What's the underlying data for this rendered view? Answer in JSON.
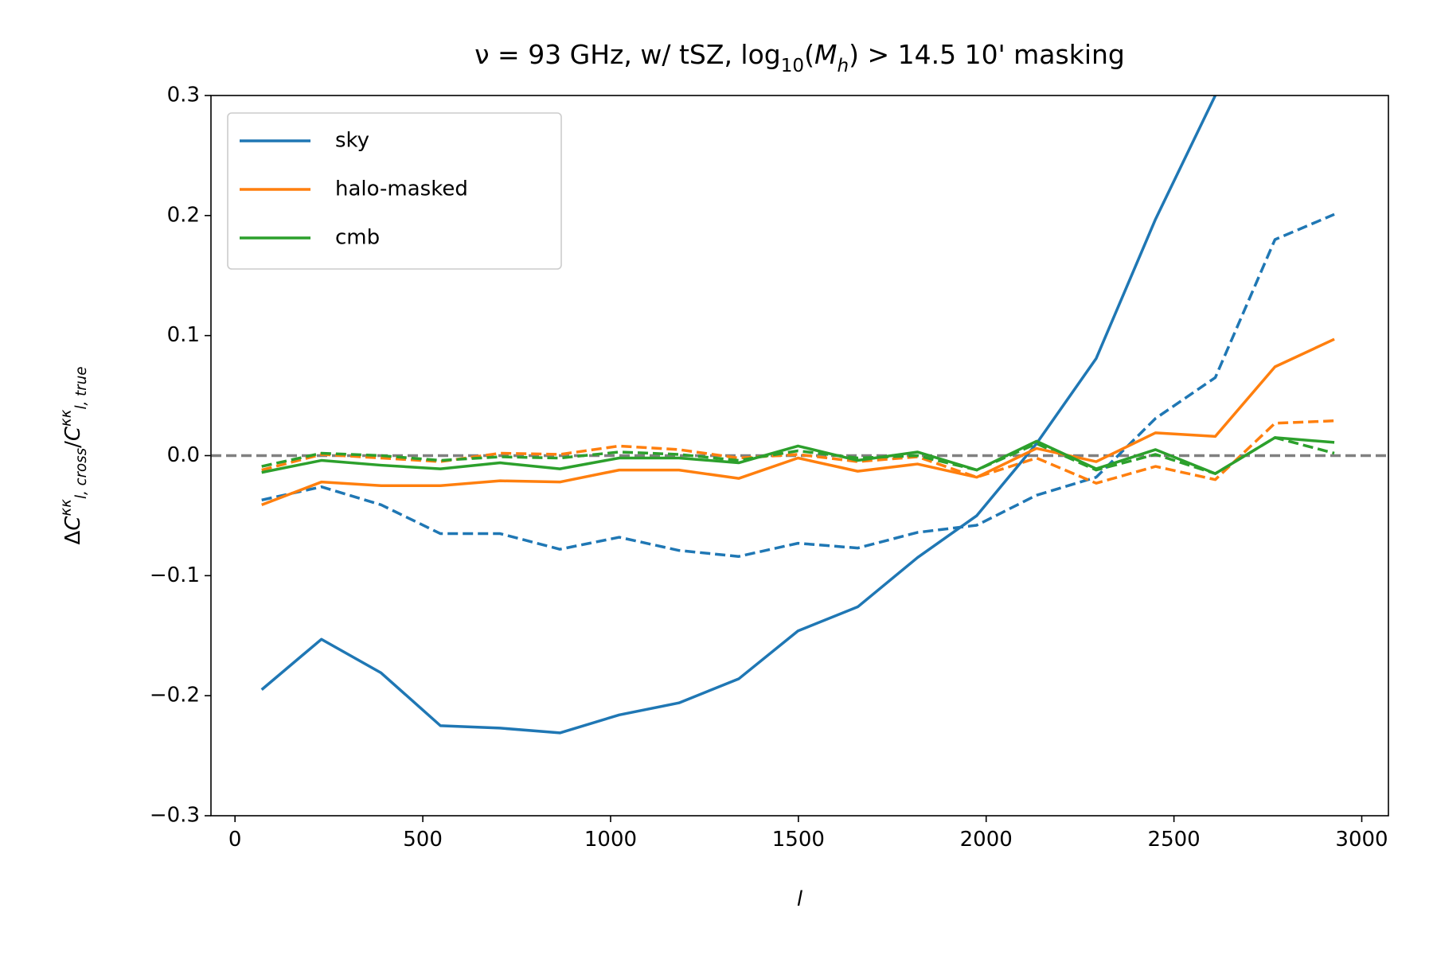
{
  "chart_data": {
    "type": "line",
    "title_parts": [
      {
        "text": "ν = 93 GHz, w/ tSZ, log",
        "style": "normal"
      },
      {
        "text": "10",
        "style": "sub"
      },
      {
        "text": "(",
        "style": "normal"
      },
      {
        "text": "M",
        "style": "italic"
      },
      {
        "text": "h",
        "style": "sub-italic"
      },
      {
        "text": ") > 14.5 10' masking",
        "style": "normal"
      }
    ],
    "x_label": "l",
    "y_label_parts": [
      {
        "text": "Δ",
        "style": "normal"
      },
      {
        "text": "C",
        "style": "italic"
      },
      {
        "text": "κκ",
        "style": "sup-italic"
      },
      {
        "text": "l, cross",
        "style": "sub-italic"
      },
      {
        "text": "/",
        "style": "normal"
      },
      {
        "text": "C",
        "style": "italic"
      },
      {
        "text": "κκ",
        "style": "sup-italic"
      },
      {
        "text": "l, true",
        "style": "sub-italic"
      }
    ],
    "x": [
      71,
      230,
      389,
      547,
      706,
      865,
      1023,
      1182,
      1341,
      1499,
      1658,
      1817,
      1975,
      2134,
      2293,
      2451,
      2610,
      2769,
      2927
    ],
    "series": [
      {
        "name": "sky",
        "color": "#1f77b4",
        "values": [
          -0.195,
          -0.153,
          -0.181,
          -0.225,
          -0.227,
          -0.231,
          -0.216,
          -0.206,
          -0.186,
          -0.146,
          -0.126,
          -0.085,
          -0.05,
          0.01,
          0.081,
          0.197,
          0.3,
          null,
          null
        ],
        "dashed_values": [
          -0.037,
          -0.026,
          -0.041,
          -0.065,
          -0.065,
          -0.078,
          -0.068,
          -0.079,
          -0.084,
          -0.073,
          -0.077,
          -0.064,
          -0.058,
          -0.033,
          -0.018,
          0.031,
          0.065,
          0.18,
          0.201
        ]
      },
      {
        "name": "halo-masked",
        "color": "#ff7f0e",
        "values": [
          -0.041,
          -0.022,
          -0.025,
          -0.025,
          -0.021,
          -0.022,
          -0.012,
          -0.012,
          -0.019,
          -0.002,
          -0.013,
          -0.007,
          -0.018,
          0.006,
          -0.005,
          0.019,
          0.016,
          0.074,
          0.097
        ],
        "dashed_values": [
          -0.012,
          0.001,
          -0.002,
          -0.005,
          0.002,
          0.001,
          0.008,
          0.005,
          -0.002,
          0.001,
          -0.005,
          -0.001,
          -0.018,
          -0.002,
          -0.023,
          -0.009,
          -0.02,
          0.027,
          0.029
        ]
      },
      {
        "name": "cmb",
        "color": "#2ca02c",
        "values": [
          -0.014,
          -0.004,
          -0.008,
          -0.011,
          -0.006,
          -0.011,
          -0.002,
          -0.002,
          -0.006,
          0.008,
          -0.004,
          0.003,
          -0.012,
          0.012,
          -0.011,
          0.005,
          -0.015,
          0.015,
          0.011
        ],
        "dashed_values": [
          -0.009,
          0.002,
          0.0,
          -0.004,
          -0.001,
          -0.002,
          0.003,
          0.001,
          -0.004,
          0.004,
          -0.002,
          0.0,
          -0.012,
          0.01,
          -0.012,
          0.001,
          -0.015,
          0.015,
          0.002
        ]
      }
    ],
    "reference_line": 0,
    "reference_color": "#808080",
    "xlim": [
      -64,
      3071
    ],
    "ylim": [
      -0.3,
      0.3
    ],
    "xticks": [
      0,
      500,
      1000,
      1500,
      2000,
      2500,
      3000
    ],
    "yticks": [
      {
        "value": -0.3,
        "label": "−0.3"
      },
      {
        "value": -0.2,
        "label": "−0.2"
      },
      {
        "value": -0.1,
        "label": "−0.1"
      },
      {
        "value": 0,
        "label": "0.0"
      },
      0.1,
      0.2,
      0.3
    ],
    "grid": false,
    "legend": "upper left"
  }
}
